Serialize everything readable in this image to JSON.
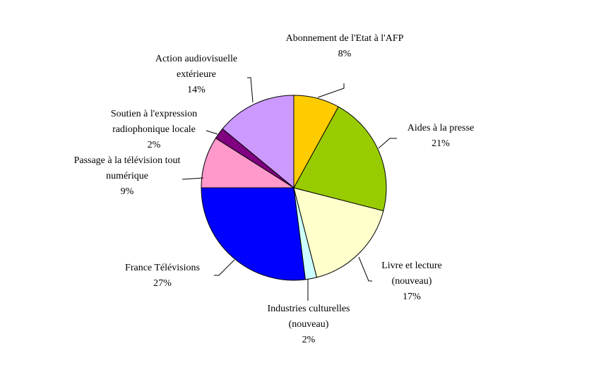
{
  "chart_data": {
    "type": "pie",
    "categories": [
      "Abonnement de l'Etat à l'AFP",
      "Aides à la presse",
      "Livre et lecture (nouveau)",
      "Industries culturelles (nouveau)",
      "France Télévisions",
      "Passage à la télévision tout numérique",
      "Soutien à l'expression radiophonique locale",
      "Action audiovisuelle extérieure"
    ],
    "values": [
      8,
      21,
      17,
      2,
      27,
      9,
      2,
      14
    ],
    "value_labels": [
      "8%",
      "21%",
      "17%",
      "2%",
      "27%",
      "9%",
      "2%",
      "14%"
    ],
    "colors": [
      "#ffcc00",
      "#99cc00",
      "#ffffcc",
      "#ccffff",
      "#0000ff",
      "#ff99cc",
      "#800080",
      "#cc99ff"
    ]
  }
}
